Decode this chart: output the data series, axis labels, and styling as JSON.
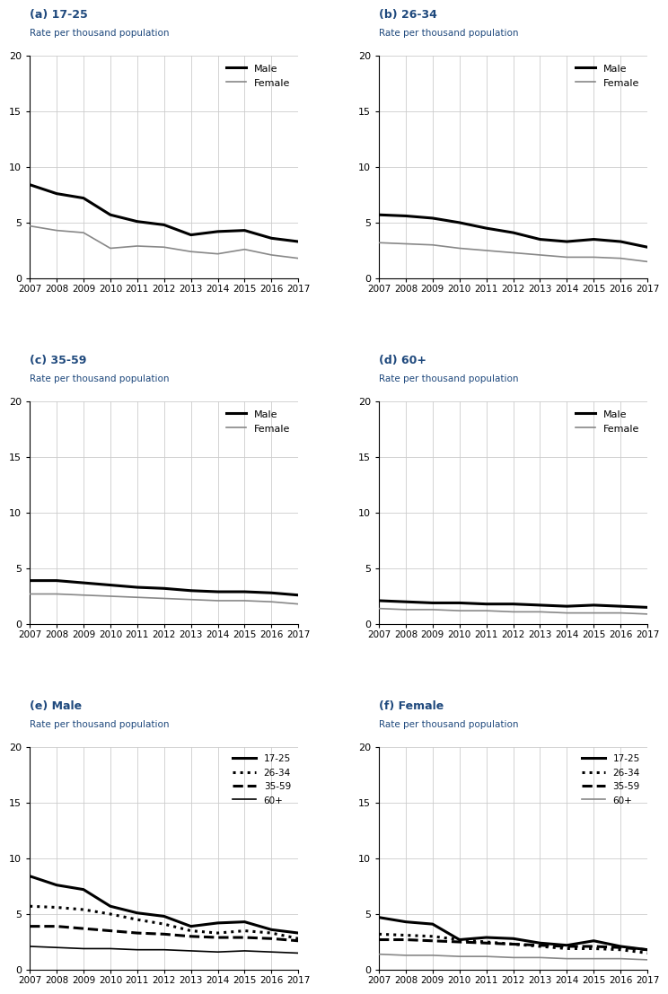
{
  "years": [
    2007,
    2008,
    2009,
    2010,
    2011,
    2012,
    2013,
    2014,
    2015,
    2016,
    2017
  ],
  "panel_a": {
    "title": "(a) 17-25",
    "male": [
      8.4,
      7.6,
      7.2,
      5.7,
      5.1,
      4.8,
      3.9,
      4.2,
      4.3,
      3.6,
      3.3
    ],
    "female": [
      4.7,
      4.3,
      4.1,
      2.7,
      2.9,
      2.8,
      2.4,
      2.2,
      2.6,
      2.1,
      1.8
    ]
  },
  "panel_b": {
    "title": "(b) 26-34",
    "male": [
      5.7,
      5.6,
      5.4,
      5.0,
      4.5,
      4.1,
      3.5,
      3.3,
      3.5,
      3.3,
      2.8
    ],
    "female": [
      3.2,
      3.1,
      3.0,
      2.7,
      2.5,
      2.3,
      2.1,
      1.9,
      1.9,
      1.8,
      1.5
    ]
  },
  "panel_c": {
    "title": "(c) 35-59",
    "male": [
      3.9,
      3.9,
      3.7,
      3.5,
      3.3,
      3.2,
      3.0,
      2.9,
      2.9,
      2.8,
      2.6
    ],
    "female": [
      2.7,
      2.7,
      2.6,
      2.5,
      2.4,
      2.3,
      2.2,
      2.1,
      2.1,
      2.0,
      1.8
    ]
  },
  "panel_d": {
    "title": "(d) 60+",
    "male": [
      2.1,
      2.0,
      1.9,
      1.9,
      1.8,
      1.8,
      1.7,
      1.6,
      1.7,
      1.6,
      1.5
    ],
    "female": [
      1.4,
      1.3,
      1.3,
      1.2,
      1.2,
      1.1,
      1.1,
      1.0,
      1.0,
      1.0,
      0.9
    ]
  },
  "panel_e": {
    "title": "(e) Male",
    "age_17_25": [
      8.4,
      7.6,
      7.2,
      5.7,
      5.1,
      4.8,
      3.9,
      4.2,
      4.3,
      3.6,
      3.3
    ],
    "age_26_34": [
      5.7,
      5.6,
      5.4,
      5.0,
      4.5,
      4.1,
      3.5,
      3.3,
      3.5,
      3.3,
      2.8
    ],
    "age_35_59": [
      3.9,
      3.9,
      3.7,
      3.5,
      3.3,
      3.2,
      3.0,
      2.9,
      2.9,
      2.8,
      2.6
    ],
    "age_60p": [
      2.1,
      2.0,
      1.9,
      1.9,
      1.8,
      1.8,
      1.7,
      1.6,
      1.7,
      1.6,
      1.5
    ]
  },
  "panel_f": {
    "title": "(f) Female",
    "age_17_25": [
      4.7,
      4.3,
      4.1,
      2.7,
      2.9,
      2.8,
      2.4,
      2.2,
      2.6,
      2.1,
      1.8
    ],
    "age_26_34": [
      3.2,
      3.1,
      3.0,
      2.7,
      2.5,
      2.3,
      2.1,
      1.9,
      1.9,
      1.8,
      1.5
    ],
    "age_35_59": [
      2.7,
      2.7,
      2.6,
      2.5,
      2.4,
      2.3,
      2.2,
      2.1,
      2.1,
      2.0,
      1.8
    ],
    "age_60p": [
      1.4,
      1.3,
      1.3,
      1.2,
      1.2,
      1.1,
      1.1,
      1.0,
      1.0,
      1.0,
      0.9
    ]
  },
  "ylim": [
    0,
    20
  ],
  "yticks": [
    0,
    5,
    10,
    15,
    20
  ],
  "ylabel": "Rate per thousand population",
  "male_color": "#000000",
  "female_color": "#888888",
  "title_color": "#1F497D",
  "ylabel_color": "#1F497D",
  "grid_color": "#cccccc",
  "lw_thick": 2.2,
  "lw_thin": 1.2
}
